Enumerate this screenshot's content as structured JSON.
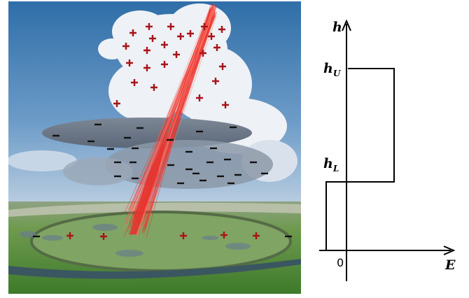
{
  "diagram": {
    "axes": {
      "vertical": "h",
      "horizontal": "E",
      "origin": "0"
    },
    "levels": [
      {
        "symbol": "h",
        "subscript": "U"
      },
      {
        "symbol": "h",
        "subscript": "L"
      }
    ]
  }
}
